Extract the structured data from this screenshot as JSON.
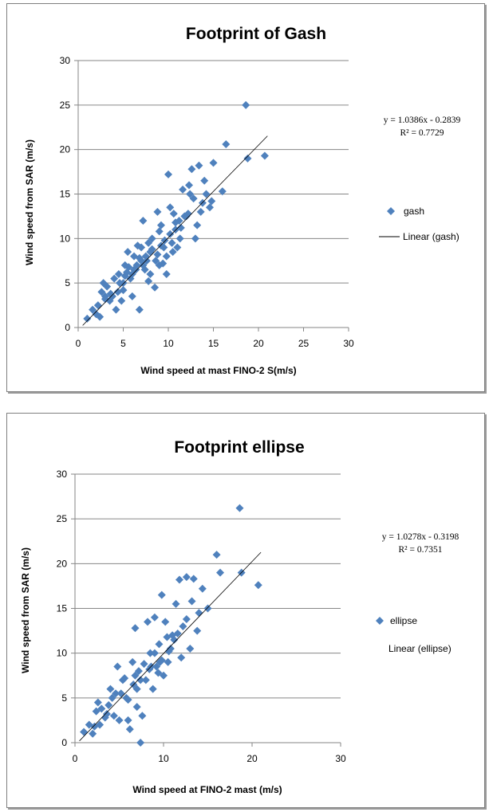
{
  "colors": {
    "marker": "#4F81BD",
    "gridline": "#868686",
    "trendline": "#000000",
    "axis": "#868686"
  },
  "chart_data": [
    {
      "type": "scatter",
      "title": "Footprint of Gash",
      "xlabel": "Wind speed at mast FINO-2 S(m/s)",
      "ylabel": "Wind speed from SAR (m/s)",
      "xlim": [
        0,
        30
      ],
      "ylim": [
        0,
        30
      ],
      "xticks": [
        0,
        5,
        10,
        15,
        20,
        25,
        30
      ],
      "yticks": [
        0,
        5,
        10,
        15,
        20,
        25,
        30
      ],
      "grid": "horizontal",
      "legend_position": "right",
      "series": [
        {
          "name": "gash",
          "marker": "diamond",
          "x": [
            1.0,
            1.6,
            2.0,
            2.4,
            2.6,
            2.8,
            3.0,
            3.2,
            3.5,
            3.8,
            4.0,
            4.2,
            4.5,
            4.8,
            5.0,
            5.2,
            5.5,
            5.8,
            6.0,
            6.2,
            6.5,
            6.8,
            7.0,
            7.2,
            7.5,
            7.8,
            8.0,
            8.2,
            8.5,
            8.8,
            9.0,
            9.2,
            9.5,
            9.8,
            10.0,
            10.2,
            10.5,
            10.8,
            11.0,
            11.3,
            11.6,
            12.0,
            12.3,
            12.6,
            13.0,
            13.4,
            13.8,
            14.2,
            14.6,
            15.0,
            16.0,
            16.4,
            18.6,
            18.8,
            20.7,
            5.0,
            6.2,
            7.4,
            8.6,
            9.8,
            11.2,
            4.4,
            5.6,
            6.6,
            7.8,
            9.0,
            10.4,
            12.4,
            6.8,
            8.2,
            3.6,
            5.4,
            7.0,
            9.4,
            10.6,
            11.8,
            13.2,
            14.0,
            2.2,
            3.0,
            4.6,
            6.0,
            7.6,
            8.8,
            9.6,
            10.2,
            11.4,
            12.8,
            6.4,
            7.2,
            5.2,
            8.0,
            9.2,
            10.8,
            12.2,
            13.6,
            14.8
          ],
          "y": [
            1.0,
            2.0,
            1.5,
            1.2,
            4.0,
            5.0,
            3.2,
            4.6,
            3.0,
            3.5,
            5.5,
            2.0,
            6.0,
            3.0,
            4.2,
            7.0,
            8.5,
            5.5,
            3.5,
            6.5,
            7.0,
            2.0,
            7.5,
            12.0,
            8.0,
            9.5,
            6.0,
            10.0,
            4.5,
            13.0,
            7.0,
            11.5,
            9.0,
            6.0,
            17.2,
            13.5,
            8.5,
            11.0,
            9.0,
            10.0,
            15.5,
            12.5,
            16.0,
            17.8,
            10.0,
            18.2,
            14.0,
            15.0,
            13.5,
            18.5,
            15.3,
            20.6,
            25.0,
            19.0,
            19.3,
            5.0,
            8.0,
            6.5,
            7.5,
            8.0,
            12.0,
            4.0,
            6.8,
            9.2,
            5.2,
            10.8,
            9.5,
            15.0,
            7.8,
            8.8,
            3.8,
            6.2,
            9.0,
            7.2,
            12.8,
            12.5,
            11.5,
            16.5,
            2.5,
            3.5,
            5.0,
            6.0,
            7.5,
            8.2,
            9.8,
            10.5,
            11.2,
            14.5,
            6.5,
            7.0,
            5.8,
            8.5,
            9.2,
            11.8,
            12.8,
            13.0,
            14.2
          ]
        }
      ],
      "trendline": {
        "name": "Linear (gash)",
        "slope": 1.0386,
        "intercept": -0.2839,
        "x_range": [
          0.5,
          21
        ]
      },
      "equation_text": "y = 1.0386x - 0.2839",
      "r2_text": "R² = 0.7729"
    },
    {
      "type": "scatter",
      "title": "Footprint ellipse",
      "xlabel": "Wind speed at FINO-2 mast (m/s)",
      "ylabel": "Wind speed from SAR (m/s)",
      "xlim": [
        0,
        30
      ],
      "ylim": [
        0,
        30
      ],
      "xticks": [
        0,
        10,
        20,
        30
      ],
      "yticks": [
        0,
        5,
        10,
        15,
        20,
        25,
        30
      ],
      "grid": "horizontal",
      "legend_position": "right",
      "series": [
        {
          "name": "ellipse",
          "marker": "diamond",
          "x": [
            1.0,
            1.6,
            2.0,
            2.4,
            2.6,
            2.8,
            3.0,
            3.4,
            3.8,
            4.0,
            4.4,
            4.8,
            5.0,
            5.4,
            5.8,
            6.0,
            6.2,
            6.5,
            6.8,
            7.0,
            7.2,
            7.4,
            7.6,
            8.0,
            8.2,
            8.5,
            8.8,
            9.0,
            9.2,
            9.5,
            9.8,
            10.0,
            10.2,
            10.5,
            10.8,
            11.0,
            11.4,
            11.8,
            12.2,
            12.6,
            13.0,
            13.4,
            13.8,
            14.4,
            15.0,
            16.0,
            16.4,
            18.6,
            18.8,
            20.7,
            5.2,
            6.6,
            7.8,
            9.4,
            10.6,
            12.0,
            4.2,
            5.6,
            7.0,
            8.4,
            9.6,
            11.2,
            13.2,
            6.0,
            8.6,
            3.6,
            6.8,
            9.0,
            10.4,
            12.6,
            14.0,
            2.2,
            4.6,
            7.4,
            9.8,
            11.6
          ],
          "y": [
            1.2,
            2.0,
            1.0,
            3.5,
            4.5,
            2.0,
            3.8,
            2.8,
            4.2,
            6.0,
            3.0,
            8.5,
            2.5,
            7.0,
            5.0,
            2.5,
            1.5,
            9.0,
            12.8,
            4.0,
            8.0,
            0.0,
            3.0,
            7.0,
            13.5,
            10.0,
            6.0,
            14.0,
            8.5,
            11.0,
            16.5,
            7.5,
            13.5,
            9.0,
            10.5,
            12.0,
            15.5,
            18.2,
            13.0,
            18.5,
            10.5,
            18.3,
            12.5,
            17.2,
            15.0,
            21.0,
            19.0,
            26.2,
            19.0,
            17.6,
            5.5,
            6.5,
            8.8,
            7.8,
            10.2,
            9.5,
            5.0,
            7.2,
            6.0,
            8.2,
            9.0,
            11.5,
            15.8,
            4.8,
            8.5,
            3.2,
            7.5,
            10.0,
            11.8,
            13.8,
            14.5,
            1.8,
            5.5,
            7.0,
            9.2,
            12.2
          ]
        }
      ],
      "trendline": {
        "name": "Linear (ellipse)",
        "slope": 1.0278,
        "intercept": -0.3198,
        "x_range": [
          0.5,
          21
        ]
      },
      "equation_text": "y = 1.0278x - 0.3198",
      "r2_text": "R² = 0.7351"
    }
  ]
}
